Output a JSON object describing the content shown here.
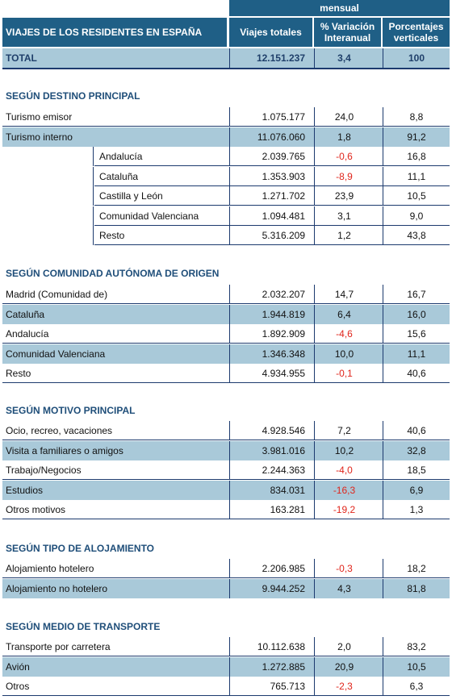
{
  "header": {
    "period": "mensual",
    "title": "VIAJES DE LOS RESIDENTES EN ESPAÑA",
    "col_viajes": "Viajes totales",
    "col_var_1": "% Variación",
    "col_var_2": "Interanual",
    "col_pct_1": "Porcentajes",
    "col_pct_2": "verticales"
  },
  "total": {
    "label": "TOTAL",
    "viajes": "12.151.237",
    "var": "3,4",
    "pct": "100"
  },
  "sections": [
    {
      "title": "SEGÚN DESTINO PRINCIPAL",
      "rows": [
        {
          "label": "Turismo emisor",
          "viajes": "1.075.177",
          "var": "24,0",
          "pct": "8,8"
        },
        {
          "label": "Turismo interno",
          "viajes": "11.076.060",
          "var": "1,8",
          "pct": "91,2"
        },
        {
          "label": "Andalucía",
          "viajes": "2.039.765",
          "var": "-0,6",
          "pct": "16,8"
        },
        {
          "label": "Cataluña",
          "viajes": "1.353.903",
          "var": "-8,9",
          "pct": "11,1"
        },
        {
          "label": "Castilla y León",
          "viajes": "1.271.702",
          "var": "23,9",
          "pct": "10,5"
        },
        {
          "label": "Comunidad Valenciana",
          "viajes": "1.094.481",
          "var": "3,1",
          "pct": "9,0"
        },
        {
          "label": "Resto",
          "viajes": "5.316.209",
          "var": "1,2",
          "pct": "43,8"
        }
      ]
    },
    {
      "title": "SEGÚN COMUNIDAD AUTÓNOMA DE ORIGEN",
      "rows": [
        {
          "label": "Madrid (Comunidad de)",
          "viajes": "2.032.207",
          "var": "14,7",
          "pct": "16,7"
        },
        {
          "label": "Cataluña",
          "viajes": "1.944.819",
          "var": "6,4",
          "pct": "16,0"
        },
        {
          "label": "Andalucía",
          "viajes": "1.892.909",
          "var": "-4,6",
          "pct": "15,6"
        },
        {
          "label": "Comunidad Valenciana",
          "viajes": "1.346.348",
          "var": "10,0",
          "pct": "11,1"
        },
        {
          "label": "Resto",
          "viajes": "4.934.955",
          "var": "-0,1",
          "pct": "40,6"
        }
      ]
    },
    {
      "title": "SEGÚN MOTIVO PRINCIPAL",
      "rows": [
        {
          "label": "Ocio, recreo, vacaciones",
          "viajes": "4.928.546",
          "var": "7,2",
          "pct": "40,6"
        },
        {
          "label": "Visita a familiares o amigos",
          "viajes": "3.981.016",
          "var": "10,2",
          "pct": "32,8"
        },
        {
          "label": "Trabajo/Negocios",
          "viajes": "2.244.363",
          "var": "-4,0",
          "pct": "18,5"
        },
        {
          "label": "Estudios",
          "viajes": "834.031",
          "var": "-16,3",
          "pct": "6,9"
        },
        {
          "label": "Otros motivos",
          "viajes": "163.281",
          "var": "-19,2",
          "pct": "1,3"
        }
      ]
    },
    {
      "title": "SEGÚN TIPO DE ALOJAMIENTO",
      "rows": [
        {
          "label": "Alojamiento hotelero",
          "viajes": "2.206.985",
          "var": "-0,3",
          "pct": "18,2"
        },
        {
          "label": "Alojamiento no hotelero",
          "viajes": "9.944.252",
          "var": "4,3",
          "pct": "81,8"
        }
      ]
    },
    {
      "title": "SEGÚN MEDIO DE TRANSPORTE",
      "rows": [
        {
          "label": "Transporte por carretera",
          "viajes": "10.112.638",
          "var": "2,0",
          "pct": "83,2"
        },
        {
          "label": "Avión",
          "viajes": "1.272.885",
          "var": "20,9",
          "pct": "10,5"
        },
        {
          "label": "Otros",
          "viajes": "765.713",
          "var": "-2,3",
          "pct": "6,3"
        }
      ]
    }
  ]
}
